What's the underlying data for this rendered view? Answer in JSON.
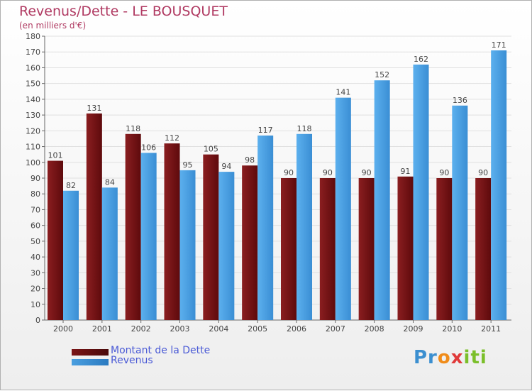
{
  "header": {
    "title": "Revenus/Dette - LE BOUSQUET",
    "subtitle": "(en milliers d'€)"
  },
  "legend": {
    "dette_label": "Montant de la Dette",
    "revenus_label": "Revenus"
  },
  "logo": {
    "text": "Proxiti"
  },
  "colors": {
    "dette": "#7a1416",
    "revenus": "#4a9fe0",
    "title": "#b03a62",
    "legend_text": "#4a5ad6"
  },
  "chart_data": {
    "type": "bar",
    "title": "Revenus/Dette - LE BOUSQUET",
    "subtitle": "(en milliers d'€)",
    "categories": [
      "2000",
      "2001",
      "2002",
      "2003",
      "2004",
      "2005",
      "2006",
      "2007",
      "2008",
      "2009",
      "2010",
      "2011"
    ],
    "series": [
      {
        "name": "Montant de la Dette",
        "values": [
          101,
          131,
          118,
          112,
          105,
          98,
          90,
          90,
          90,
          91,
          90,
          90
        ]
      },
      {
        "name": "Revenus",
        "values": [
          82,
          84,
          106,
          95,
          94,
          117,
          118,
          141,
          152,
          162,
          136,
          171
        ]
      }
    ],
    "ylim": [
      0,
      180
    ],
    "ytick_step": 10,
    "grid": true,
    "legend_position": "bottom-left"
  }
}
